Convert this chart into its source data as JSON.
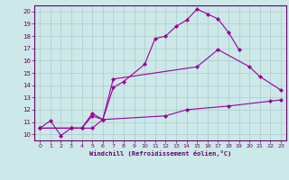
{
  "xlabel": "Windchill (Refroidissement éolien,°C)",
  "background_color": "#cce8e8",
  "line_color": "#990099",
  "xlim_min": -0.5,
  "xlim_max": 23.5,
  "ylim_min": 9.5,
  "ylim_max": 20.5,
  "xticks": [
    0,
    1,
    2,
    3,
    4,
    5,
    6,
    7,
    8,
    9,
    10,
    11,
    12,
    13,
    14,
    15,
    16,
    17,
    18,
    19,
    20,
    21,
    22,
    23
  ],
  "yticks": [
    10,
    11,
    12,
    13,
    14,
    15,
    16,
    17,
    18,
    19,
    20
  ],
  "grid_color": "#aacccc",
  "series": [
    {
      "x": [
        0,
        1,
        2,
        3,
        4,
        5,
        6,
        7,
        8,
        10,
        11,
        12,
        13,
        14,
        15,
        16,
        17,
        18,
        19
      ],
      "y": [
        10.5,
        11.1,
        9.9,
        10.5,
        10.5,
        11.5,
        11.2,
        13.8,
        14.3,
        15.7,
        17.8,
        18.0,
        18.8,
        19.3,
        20.2,
        19.8,
        19.4,
        18.3,
        16.9
      ]
    },
    {
      "x": [
        0,
        3,
        4,
        5,
        6,
        7,
        15,
        17,
        20,
        21,
        23
      ],
      "y": [
        10.5,
        10.5,
        10.5,
        11.7,
        11.2,
        14.5,
        15.5,
        16.9,
        15.5,
        14.7,
        13.6
      ]
    },
    {
      "x": [
        0,
        3,
        5,
        6,
        12,
        14,
        18,
        22,
        23
      ],
      "y": [
        10.5,
        10.5,
        10.5,
        11.2,
        11.5,
        12.0,
        12.3,
        12.7,
        12.8
      ]
    }
  ]
}
